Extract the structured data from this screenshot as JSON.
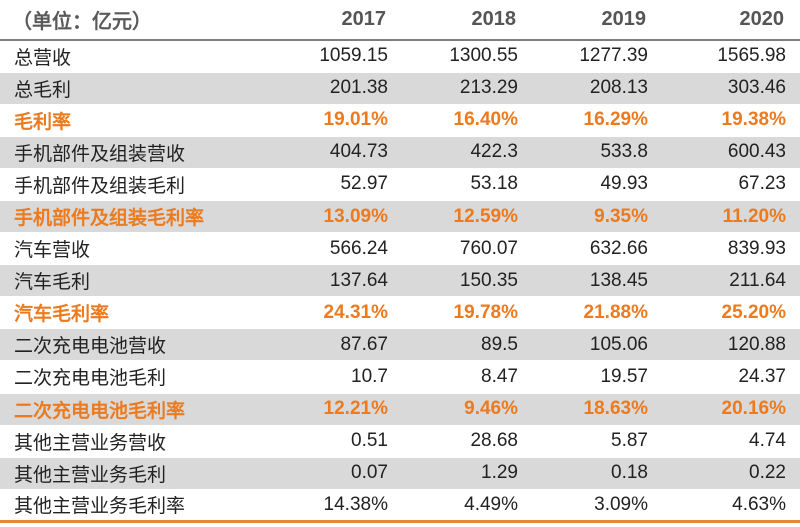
{
  "header": {
    "unit_label": "（单位：亿元）",
    "years": [
      "2017",
      "2018",
      "2019",
      "2020"
    ]
  },
  "rows": [
    {
      "label": "总营收",
      "values": [
        "1059.15",
        "1300.55",
        "1277.39",
        "1565.98"
      ]
    },
    {
      "label": "总毛利",
      "values": [
        "201.38",
        "213.29",
        "208.13",
        "303.46"
      ]
    },
    {
      "label": "毛利率",
      "values": [
        "19.01%",
        "16.40%",
        "16.29%",
        "19.38%"
      ]
    },
    {
      "label": "手机部件及组装营收",
      "values": [
        "404.73",
        "422.3",
        "533.8",
        "600.43"
      ]
    },
    {
      "label": "手机部件及组装毛利",
      "values": [
        "52.97",
        "53.18",
        "49.93",
        "67.23"
      ]
    },
    {
      "label": "手机部件及组装毛利率",
      "values": [
        "13.09%",
        "12.59%",
        "9.35%",
        "11.20%"
      ]
    },
    {
      "label": "汽车营收",
      "values": [
        "566.24",
        "760.07",
        "632.66",
        "839.93"
      ]
    },
    {
      "label": "汽车毛利",
      "values": [
        "137.64",
        "150.35",
        "138.45",
        "211.64"
      ]
    },
    {
      "label": "汽车毛利率",
      "values": [
        "24.31%",
        "19.78%",
        "21.88%",
        "25.20%"
      ]
    },
    {
      "label": "二次充电电池营收",
      "values": [
        "87.67",
        "89.5",
        "105.06",
        "120.88"
      ]
    },
    {
      "label": "二次充电电池毛利",
      "values": [
        "10.7",
        "8.47",
        "19.57",
        "24.37"
      ]
    },
    {
      "label": "二次充电电池毛利率",
      "values": [
        "12.21%",
        "9.46%",
        "18.63%",
        "20.16%"
      ]
    },
    {
      "label": "其他主营业务营收",
      "values": [
        "0.51",
        "28.68",
        "5.87",
        "4.74"
      ]
    },
    {
      "label": "其他主营业务毛利",
      "values": [
        "0.07",
        "1.29",
        "0.18",
        "0.22"
      ]
    },
    {
      "label": "其他主营业务毛利率",
      "values": [
        "14.38%",
        "4.49%",
        "3.09%",
        "4.63%"
      ]
    }
  ],
  "colors": {
    "highlight_text": "#ec7a1e",
    "shade_row": "#d9d9d9",
    "bottom_rule": "#e28a3c"
  }
}
